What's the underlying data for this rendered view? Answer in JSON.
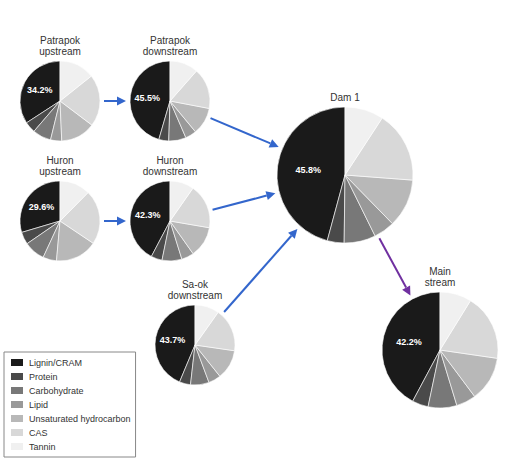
{
  "chart_data": [
    {
      "type": "pie",
      "title": "Patrapok\nupstream",
      "categories": [
        "Lignin/CRAM",
        "Protein",
        "Carbohydrate",
        "Lipid",
        "Unsaturated hydrocarbon",
        "CAS",
        "Tannin"
      ],
      "values": [
        34.2,
        4.5,
        7.5,
        4.5,
        14.0,
        21.0,
        14.3
      ],
      "colors": [
        "#1a1a1a",
        "#4a4a4a",
        "#787878",
        "#999999",
        "#b8b8b8",
        "#d8d8d8",
        "#f0f0f0"
      ],
      "annotations": [
        {
          "text": "34.2%",
          "color": "white"
        }
      ],
      "legend": "lower left"
    },
    {
      "type": "pie",
      "title": "Patrapok\ndownstream",
      "categories": [
        "Lignin/CRAM",
        "Protein",
        "Carbohydrate",
        "Lipid",
        "Unsaturated hydrocarbon",
        "CAS",
        "Tannin"
      ],
      "values": [
        45.5,
        4.0,
        7.0,
        4.5,
        11.0,
        16.5,
        11.5
      ],
      "colors": [
        "#1a1a1a",
        "#4a4a4a",
        "#787878",
        "#999999",
        "#b8b8b8",
        "#d8d8d8",
        "#f0f0f0"
      ],
      "annotations": [
        {
          "text": "45.5%",
          "color": "white"
        }
      ],
      "legend": "lower left"
    },
    {
      "type": "pie",
      "title": "Huron\nupstream",
      "categories": [
        "Lignin/CRAM",
        "Protein",
        "Carbohydrate",
        "Lipid",
        "Unsaturated hydrocarbon",
        "CAS",
        "Tannin"
      ],
      "values": [
        29.6,
        5.0,
        8.5,
        5.5,
        17.0,
        22.0,
        12.4
      ],
      "colors": [
        "#1a1a1a",
        "#4a4a4a",
        "#787878",
        "#999999",
        "#b8b8b8",
        "#d8d8d8",
        "#f0f0f0"
      ],
      "annotations": [
        {
          "text": "29.6%",
          "color": "white"
        }
      ],
      "legend": "lower left"
    },
    {
      "type": "pie",
      "title": "Huron\ndownstream",
      "categories": [
        "Lignin/CRAM",
        "Protein",
        "Carbohydrate",
        "Lipid",
        "Unsaturated hydrocarbon",
        "CAS",
        "Tannin"
      ],
      "values": [
        42.3,
        4.5,
        8.0,
        5.0,
        12.5,
        18.0,
        9.7
      ],
      "colors": [
        "#1a1a1a",
        "#4a4a4a",
        "#787878",
        "#999999",
        "#b8b8b8",
        "#d8d8d8",
        "#f0f0f0"
      ],
      "annotations": [
        {
          "text": "42.3%",
          "color": "white"
        }
      ],
      "legend": "lower left"
    },
    {
      "type": "pie",
      "title": "Sa-ok\ndownstream",
      "categories": [
        "Lignin/CRAM",
        "Protein",
        "Carbohydrate",
        "Lipid",
        "Unsaturated hydrocarbon",
        "CAS",
        "Tannin"
      ],
      "values": [
        43.7,
        4.5,
        7.5,
        5.0,
        12.0,
        17.5,
        9.8
      ],
      "colors": [
        "#1a1a1a",
        "#4a4a4a",
        "#787878",
        "#999999",
        "#b8b8b8",
        "#d8d8d8",
        "#f0f0f0"
      ],
      "annotations": [
        {
          "text": "43.7%",
          "color": "white"
        }
      ],
      "legend": "lower left"
    },
    {
      "type": "pie",
      "title": "Dam 1",
      "categories": [
        "Lignin/CRAM",
        "Protein",
        "Carbohydrate",
        "Lipid",
        "Unsaturated hydrocarbon",
        "CAS",
        "Tannin"
      ],
      "values": [
        45.8,
        4.0,
        7.5,
        5.0,
        11.5,
        17.0,
        9.2
      ],
      "colors": [
        "#1a1a1a",
        "#4a4a4a",
        "#787878",
        "#999999",
        "#b8b8b8",
        "#d8d8d8",
        "#f0f0f0"
      ],
      "annotations": [
        {
          "text": "45.8%",
          "color": "white"
        }
      ],
      "legend": "lower left"
    },
    {
      "type": "pie",
      "title": "Main\nstream",
      "categories": [
        "Lignin/CRAM",
        "Protein",
        "Carbohydrate",
        "Lipid",
        "Unsaturated hydrocarbon",
        "CAS",
        "Tannin"
      ],
      "values": [
        42.2,
        4.5,
        8.0,
        5.5,
        12.5,
        18.5,
        8.8
      ],
      "colors": [
        "#1a1a1a",
        "#4a4a4a",
        "#787878",
        "#999999",
        "#b8b8b8",
        "#d8d8d8",
        "#f0f0f0"
      ],
      "annotations": [
        {
          "text": "42.2%",
          "color": "white"
        }
      ],
      "legend": "lower left"
    }
  ]
}
